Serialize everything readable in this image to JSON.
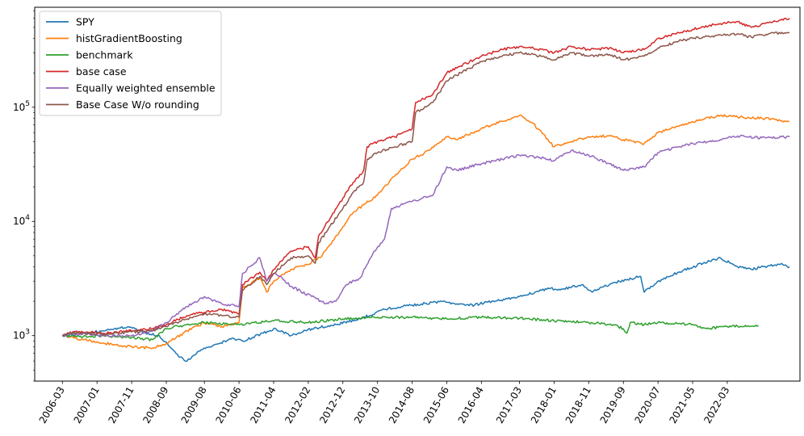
{
  "chart_data": {
    "type": "line",
    "title": "",
    "xlabel": "",
    "ylabel": "",
    "yscale": "log",
    "ylim": [
      400,
      750000
    ],
    "xlim": [
      "2005-07",
      "2023-12"
    ],
    "grid": false,
    "legend_placement": "top-left",
    "y_ticks": [
      {
        "value": 1000,
        "base": "10",
        "exp": "3"
      },
      {
        "value": 10000,
        "base": "10",
        "exp": "4"
      },
      {
        "value": 100000,
        "base": "10",
        "exp": "5"
      }
    ],
    "x_ticks": [
      "2006-03",
      "2007-01",
      "2007-11",
      "2008-09",
      "2009-08",
      "2010-06",
      "2011-04",
      "2012-02",
      "2012-12",
      "2013-10",
      "2014-08",
      "2015-06",
      "2016-04",
      "2017-03",
      "2018-01",
      "2018-11",
      "2019-09",
      "2020-07",
      "2021-05",
      "2022-03"
    ],
    "series": [
      {
        "name": "SPY",
        "color": "#1f77b4",
        "points": [
          [
            "2006-03",
            1000
          ],
          [
            "2006-09",
            1050
          ],
          [
            "2007-03",
            1100
          ],
          [
            "2007-10",
            1200
          ],
          [
            "2008-03",
            1050
          ],
          [
            "2008-07",
            1000
          ],
          [
            "2008-10",
            800
          ],
          [
            "2009-01",
            650
          ],
          [
            "2009-03",
            600
          ],
          [
            "2009-06",
            720
          ],
          [
            "2009-12",
            850
          ],
          [
            "2010-04",
            950
          ],
          [
            "2010-07",
            900
          ],
          [
            "2011-01",
            1050
          ],
          [
            "2011-04",
            1150
          ],
          [
            "2011-09",
            1000
          ],
          [
            "2012-03",
            1150
          ],
          [
            "2012-10",
            1250
          ],
          [
            "2013-05",
            1400
          ],
          [
            "2013-12",
            1700
          ],
          [
            "2014-08",
            1850
          ],
          [
            "2015-05",
            2000
          ],
          [
            "2015-09",
            1900
          ],
          [
            "2016-02",
            1850
          ],
          [
            "2016-07",
            2000
          ],
          [
            "2017-03",
            2200
          ],
          [
            "2017-12",
            2600
          ],
          [
            "2018-02",
            2500
          ],
          [
            "2018-09",
            2800
          ],
          [
            "2018-12",
            2400
          ],
          [
            "2019-06",
            2900
          ],
          [
            "2020-02",
            3300
          ],
          [
            "2020-03",
            2400
          ],
          [
            "2020-08",
            3100
          ],
          [
            "2021-01",
            3600
          ],
          [
            "2021-08",
            4300
          ],
          [
            "2022-01",
            4800
          ],
          [
            "2022-06",
            4000
          ],
          [
            "2022-10",
            3800
          ],
          [
            "2023-03",
            4100
          ],
          [
            "2023-07",
            4200
          ],
          [
            "2023-09",
            4000
          ]
        ]
      },
      {
        "name": "histGradientBoosting",
        "color": "#ff7f0e",
        "points": [
          [
            "2006-03",
            1000
          ],
          [
            "2006-09",
            920
          ],
          [
            "2007-03",
            860
          ],
          [
            "2007-11",
            800
          ],
          [
            "2008-05",
            780
          ],
          [
            "2008-09",
            850
          ],
          [
            "2009-03",
            1100
          ],
          [
            "2009-08",
            1300
          ],
          [
            "2010-01",
            1200
          ],
          [
            "2010-06",
            1300
          ],
          [
            "2010-07",
            2600
          ],
          [
            "2010-12",
            3200
          ],
          [
            "2011-02",
            2400
          ],
          [
            "2011-04",
            3000
          ],
          [
            "2011-09",
            3800
          ],
          [
            "2012-02",
            4200
          ],
          [
            "2012-06",
            5000
          ],
          [
            "2012-12",
            9000
          ],
          [
            "2013-03",
            12000
          ],
          [
            "2013-10",
            17000
          ],
          [
            "2014-03",
            25000
          ],
          [
            "2014-08",
            35000
          ],
          [
            "2015-01",
            42000
          ],
          [
            "2015-06",
            55000
          ],
          [
            "2015-09",
            52000
          ],
          [
            "2016-04",
            65000
          ],
          [
            "2016-10",
            75000
          ],
          [
            "2017-03",
            85000
          ],
          [
            "2017-07",
            72000
          ],
          [
            "2018-01",
            45000
          ],
          [
            "2018-06",
            50000
          ],
          [
            "2018-11",
            55000
          ],
          [
            "2019-05",
            56000
          ],
          [
            "2019-09",
            52000
          ],
          [
            "2020-03",
            48000
          ],
          [
            "2020-07",
            60000
          ],
          [
            "2021-01",
            68000
          ],
          [
            "2021-05",
            75000
          ],
          [
            "2022-01",
            85000
          ],
          [
            "2022-06",
            82000
          ],
          [
            "2023-01",
            80000
          ],
          [
            "2023-09",
            75000
          ]
        ]
      },
      {
        "name": "benchmark",
        "color": "#2ca02c",
        "points": [
          [
            "2006-03",
            1000
          ],
          [
            "2006-09",
            980
          ],
          [
            "2007-03",
            1000
          ],
          [
            "2007-11",
            960
          ],
          [
            "2008-05",
            920
          ],
          [
            "2008-09",
            1150
          ],
          [
            "2009-03",
            1250
          ],
          [
            "2009-08",
            1300
          ],
          [
            "2010-06",
            1250
          ],
          [
            "2011-04",
            1350
          ],
          [
            "2012-02",
            1300
          ],
          [
            "2012-12",
            1400
          ],
          [
            "2013-10",
            1450
          ],
          [
            "2014-08",
            1450
          ],
          [
            "2015-06",
            1400
          ],
          [
            "2016-04",
            1450
          ],
          [
            "2017-03",
            1420
          ],
          [
            "2018-01",
            1350
          ],
          [
            "2018-11",
            1300
          ],
          [
            "2019-06",
            1250
          ],
          [
            "2019-09",
            1150
          ],
          [
            "2019-10",
            1050
          ],
          [
            "2019-11",
            1300
          ],
          [
            "2020-03",
            1250
          ],
          [
            "2020-07",
            1300
          ],
          [
            "2021-05",
            1250
          ],
          [
            "2021-09",
            1150
          ],
          [
            "2022-03",
            1200
          ],
          [
            "2022-09",
            1220
          ],
          [
            "2022-12",
            1230
          ]
        ]
      },
      {
        "name": "base case",
        "color": "#d62728",
        "points": [
          [
            "2006-03",
            1000
          ],
          [
            "2006-06",
            1080
          ],
          [
            "2007-03",
            1050
          ],
          [
            "2007-11",
            1100
          ],
          [
            "2008-05",
            1150
          ],
          [
            "2008-09",
            1250
          ],
          [
            "2009-03",
            1500
          ],
          [
            "2009-08",
            1600
          ],
          [
            "2010-01",
            1700
          ],
          [
            "2010-06",
            1550
          ],
          [
            "2010-07",
            2800
          ],
          [
            "2010-12",
            3600
          ],
          [
            "2011-02",
            3000
          ],
          [
            "2011-04",
            3800
          ],
          [
            "2011-09",
            5500
          ],
          [
            "2012-02",
            6000
          ],
          [
            "2012-04",
            4800
          ],
          [
            "2012-05",
            7500
          ],
          [
            "2012-12",
            16000
          ],
          [
            "2013-03",
            22000
          ],
          [
            "2013-06",
            28000
          ],
          [
            "2013-07",
            45000
          ],
          [
            "2013-10",
            50000
          ],
          [
            "2014-03",
            55000
          ],
          [
            "2014-08",
            65000
          ],
          [
            "2014-09",
            110000
          ],
          [
            "2015-02",
            130000
          ],
          [
            "2015-06",
            200000
          ],
          [
            "2015-10",
            230000
          ],
          [
            "2016-04",
            280000
          ],
          [
            "2016-10",
            320000
          ],
          [
            "2017-03",
            340000
          ],
          [
            "2017-07",
            330000
          ],
          [
            "2018-01",
            300000
          ],
          [
            "2018-06",
            340000
          ],
          [
            "2018-11",
            320000
          ],
          [
            "2019-05",
            330000
          ],
          [
            "2019-09",
            300000
          ],
          [
            "2020-03",
            320000
          ],
          [
            "2020-07",
            400000
          ],
          [
            "2021-01",
            450000
          ],
          [
            "2021-05",
            480000
          ],
          [
            "2022-01",
            540000
          ],
          [
            "2022-06",
            560000
          ],
          [
            "2022-10",
            500000
          ],
          [
            "2023-03",
            550000
          ],
          [
            "2023-09",
            600000
          ]
        ]
      },
      {
        "name": "Equally weighted ensemble",
        "color": "#9467bd",
        "points": [
          [
            "2006-03",
            1000
          ],
          [
            "2006-09",
            1050
          ],
          [
            "2007-03",
            1000
          ],
          [
            "2007-11",
            1000
          ],
          [
            "2008-05",
            1100
          ],
          [
            "2008-09",
            1300
          ],
          [
            "2009-03",
            1800
          ],
          [
            "2009-08",
            2200
          ],
          [
            "2010-01",
            1900
          ],
          [
            "2010-06",
            1800
          ],
          [
            "2010-07",
            3500
          ],
          [
            "2010-12",
            4800
          ],
          [
            "2011-02",
            3000
          ],
          [
            "2011-04",
            3500
          ],
          [
            "2011-06",
            3300
          ],
          [
            "2011-09",
            2700
          ],
          [
            "2012-03",
            2200
          ],
          [
            "2012-07",
            1900
          ],
          [
            "2012-10",
            2000
          ],
          [
            "2013-01",
            2800
          ],
          [
            "2013-05",
            3200
          ],
          [
            "2013-09",
            5500
          ],
          [
            "2013-12",
            7000
          ],
          [
            "2014-02",
            13000
          ],
          [
            "2014-08",
            15000
          ],
          [
            "2015-02",
            17000
          ],
          [
            "2015-06",
            30000
          ],
          [
            "2015-09",
            28000
          ],
          [
            "2016-04",
            32000
          ],
          [
            "2016-10",
            35000
          ],
          [
            "2017-03",
            38000
          ],
          [
            "2017-10",
            36000
          ],
          [
            "2018-01",
            34000
          ],
          [
            "2018-06",
            42000
          ],
          [
            "2018-11",
            38000
          ],
          [
            "2019-05",
            32000
          ],
          [
            "2019-09",
            28000
          ],
          [
            "2020-03",
            30000
          ],
          [
            "2020-07",
            40000
          ],
          [
            "2021-01",
            45000
          ],
          [
            "2021-05",
            48000
          ],
          [
            "2022-01",
            52000
          ],
          [
            "2022-06",
            56000
          ],
          [
            "2023-01",
            54000
          ],
          [
            "2023-09",
            55000
          ]
        ]
      },
      {
        "name": "Base Case W/o rounding",
        "color": "#8c564b",
        "points": [
          [
            "2006-03",
            1000
          ],
          [
            "2006-06",
            1060
          ],
          [
            "2007-03",
            1030
          ],
          [
            "2007-11",
            1080
          ],
          [
            "2008-05",
            1100
          ],
          [
            "2008-09",
            1200
          ],
          [
            "2009-03",
            1400
          ],
          [
            "2009-08",
            1550
          ],
          [
            "2010-01",
            1500
          ],
          [
            "2010-06",
            1450
          ],
          [
            "2010-07",
            2500
          ],
          [
            "2010-12",
            3300
          ],
          [
            "2011-02",
            2800
          ],
          [
            "2011-04",
            3500
          ],
          [
            "2011-09",
            4800
          ],
          [
            "2012-02",
            5000
          ],
          [
            "2012-04",
            4300
          ],
          [
            "2012-05",
            6500
          ],
          [
            "2012-12",
            13000
          ],
          [
            "2013-03",
            18000
          ],
          [
            "2013-06",
            22000
          ],
          [
            "2013-07",
            35000
          ],
          [
            "2013-10",
            40000
          ],
          [
            "2014-03",
            45000
          ],
          [
            "2014-08",
            50000
          ],
          [
            "2014-09",
            90000
          ],
          [
            "2015-02",
            110000
          ],
          [
            "2015-06",
            170000
          ],
          [
            "2015-10",
            200000
          ],
          [
            "2016-04",
            250000
          ],
          [
            "2016-10",
            280000
          ],
          [
            "2017-03",
            300000
          ],
          [
            "2017-07",
            290000
          ],
          [
            "2018-01",
            260000
          ],
          [
            "2018-06",
            300000
          ],
          [
            "2018-11",
            280000
          ],
          [
            "2019-05",
            290000
          ],
          [
            "2019-09",
            260000
          ],
          [
            "2020-03",
            280000
          ],
          [
            "2020-07",
            330000
          ],
          [
            "2021-01",
            380000
          ],
          [
            "2021-05",
            400000
          ],
          [
            "2022-01",
            430000
          ],
          [
            "2022-06",
            440000
          ],
          [
            "2022-10",
            410000
          ],
          [
            "2023-03",
            440000
          ],
          [
            "2023-09",
            450000
          ]
        ]
      }
    ]
  }
}
